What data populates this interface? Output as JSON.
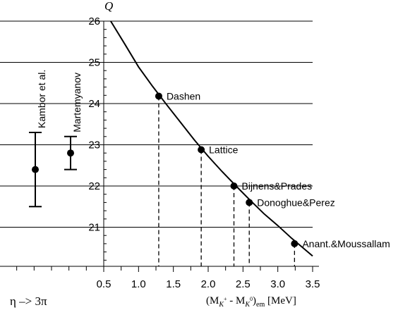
{
  "chart_data": {
    "type": "scatter",
    "y_label": "Q",
    "x_label": "(MK+ - MK0)em [MeV]",
    "x_label_parts": {
      "open": "(M",
      "k1": "K",
      "s1": "+",
      "mid": " - M",
      "k2": "K",
      "s2": "0",
      "close": ")",
      "sub": "em",
      "unit": " [MeV]"
    },
    "left_label": "η –> 3π",
    "x_range": [
      0.5,
      3.5
    ],
    "y_range": [
      20.0,
      26.0
    ],
    "x_ticks": [
      "0.5",
      "1.0",
      "1.5",
      "2.0",
      "2.5",
      "3.0",
      "3.5"
    ],
    "y_ticks": [
      "21",
      "22",
      "23",
      "24",
      "25",
      "26"
    ],
    "grid": "horizontal",
    "curve": {
      "x": [
        0.6,
        0.8,
        1.0,
        1.2,
        1.4,
        1.6,
        1.8,
        2.0,
        2.2,
        2.4,
        2.6,
        2.8,
        3.0,
        3.2,
        3.5
      ],
      "y": [
        26.0,
        25.45,
        24.89,
        24.42,
        23.98,
        23.55,
        23.12,
        22.72,
        22.35,
        22.0,
        21.66,
        21.33,
        21.04,
        20.73,
        20.3
      ]
    },
    "points": [
      {
        "label": "Dashen",
        "x": 1.29,
        "y": 24.18
      },
      {
        "label": "Lattice",
        "x": 1.9,
        "y": 22.88
      },
      {
        "label": "Bijnens&Prades",
        "x": 2.37,
        "y": 22.0
      },
      {
        "label": "Donoghue&Perez",
        "x": 2.59,
        "y": 21.6
      },
      {
        "label": "Anant.&Moussallam",
        "x": 3.24,
        "y": 20.6
      }
    ],
    "error_bars": [
      {
        "label": "Kambor et al.",
        "y": 22.4,
        "ylow": 21.5,
        "yhigh": 23.3
      },
      {
        "label": "Martemyanov",
        "y": 22.8,
        "ylow": 22.4,
        "yhigh": 23.2
      }
    ]
  }
}
